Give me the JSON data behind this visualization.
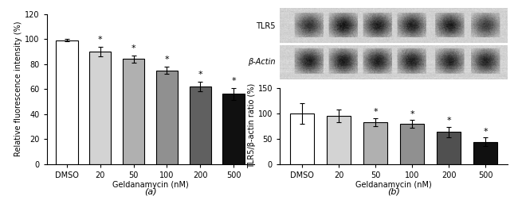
{
  "panel_a": {
    "categories": [
      "DMSO",
      "20",
      "50",
      "100",
      "200",
      "500"
    ],
    "values": [
      99,
      90,
      84,
      75,
      62,
      56
    ],
    "errors": [
      1,
      4,
      3,
      3,
      4,
      5
    ],
    "bar_colors": [
      "white",
      "#d3d3d3",
      "#b0b0b0",
      "#909090",
      "#606060",
      "#101010"
    ],
    "bar_edgecolors": [
      "black",
      "black",
      "black",
      "black",
      "black",
      "black"
    ],
    "ylabel": "Relative fluorescence intensity (%)",
    "xlabel": "Geldanamycin (nM)",
    "label": "(a)",
    "ylim": [
      0,
      120
    ],
    "yticks": [
      0,
      20,
      40,
      60,
      80,
      100,
      120
    ],
    "significant": [
      false,
      true,
      true,
      true,
      true,
      true
    ]
  },
  "panel_b_bar": {
    "categories": [
      "DMSO",
      "20",
      "50",
      "100",
      "200",
      "500"
    ],
    "values": [
      100,
      95,
      83,
      79,
      63,
      44
    ],
    "errors": [
      20,
      13,
      8,
      8,
      10,
      8
    ],
    "bar_colors": [
      "white",
      "#d3d3d3",
      "#b0b0b0",
      "#909090",
      "#505050",
      "#101010"
    ],
    "bar_edgecolors": [
      "black",
      "black",
      "black",
      "black",
      "black",
      "black"
    ],
    "ylabel": "TLR5/β-actin ratio (%)",
    "xlabel": "Geldanamycin (nM)",
    "label": "(b)",
    "ylim": [
      0,
      150
    ],
    "yticks": [
      0,
      50,
      100,
      150
    ],
    "significant": [
      false,
      false,
      true,
      true,
      true,
      true
    ]
  },
  "panel_b_blot": {
    "tlr5_label": "TLR5",
    "actin_label": "β-Actin",
    "bg_color": "#d8d4ce",
    "band_bg": "#c8c4be",
    "tlr5_intensities": [
      0.62,
      0.72,
      0.7,
      0.68,
      0.7,
      0.58
    ],
    "actin_intensities": [
      0.7,
      0.72,
      0.7,
      0.7,
      0.68,
      0.68
    ]
  },
  "fontsize": 7,
  "star_fontsize": 8,
  "label_fontsize": 8
}
